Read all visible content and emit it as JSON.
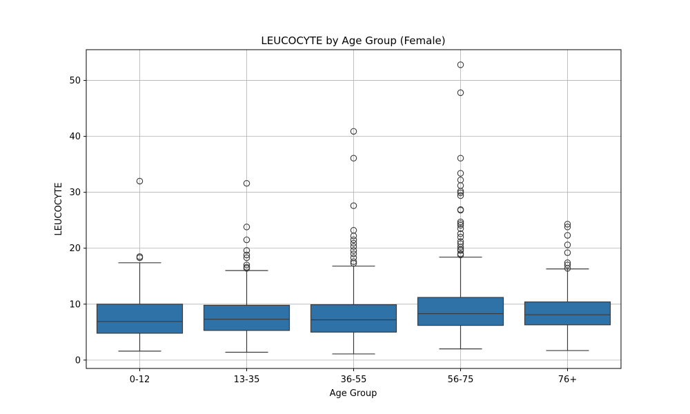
{
  "chart_data": {
    "type": "box",
    "title": "LEUCOCYTE by Age Group (Female)",
    "xlabel": "Age Group",
    "ylabel": "LEUCOCYTE",
    "ylim": [
      -1.5,
      55.5
    ],
    "yticks": [
      0,
      10,
      20,
      30,
      40,
      50
    ],
    "grid": true,
    "box_color": "#2f72a8",
    "line_color": "#3a3a3a",
    "categories": [
      "0-12",
      "13-35",
      "36-55",
      "56-75",
      "76+"
    ],
    "boxes": [
      {
        "category": "0-12",
        "whisker_low": 1.6,
        "q1": 4.8,
        "median": 6.9,
        "q3": 10.0,
        "whisker_high": 17.4,
        "outliers": [
          18.3,
          18.5,
          32.0
        ]
      },
      {
        "category": "13-35",
        "whisker_low": 1.4,
        "q1": 5.3,
        "median": 7.3,
        "q3": 9.8,
        "whisker_high": 16.0,
        "outliers": [
          16.4,
          16.6,
          17.0,
          18.3,
          18.8,
          19.6,
          21.5,
          23.8,
          31.6
        ]
      },
      {
        "category": "36-55",
        "whisker_low": 1.1,
        "q1": 5.0,
        "median": 7.2,
        "q3": 9.9,
        "whisker_high": 16.8,
        "outliers": [
          17.3,
          17.6,
          18.3,
          19.0,
          19.6,
          20.3,
          20.9,
          21.5,
          22.2,
          23.2,
          27.6,
          36.1,
          40.9
        ]
      },
      {
        "category": "56-75",
        "whisker_low": 2.0,
        "q1": 6.2,
        "median": 8.3,
        "q3": 11.2,
        "whisker_high": 18.4,
        "outliers": [
          18.8,
          19.0,
          19.6,
          19.8,
          20.2,
          20.8,
          21.2,
          22.0,
          22.6,
          23.5,
          24.1,
          24.4,
          24.7,
          26.8,
          26.9,
          29.4,
          29.9,
          30.2,
          31.2,
          32.2,
          33.4,
          36.1,
          47.8,
          52.8
        ]
      },
      {
        "category": "76+",
        "whisker_low": 1.7,
        "q1": 6.3,
        "median": 8.1,
        "q3": 10.4,
        "whisker_high": 16.3,
        "outliers": [
          16.4,
          17.0,
          17.4,
          19.2,
          20.6,
          22.3,
          23.8,
          24.3
        ]
      }
    ]
  }
}
